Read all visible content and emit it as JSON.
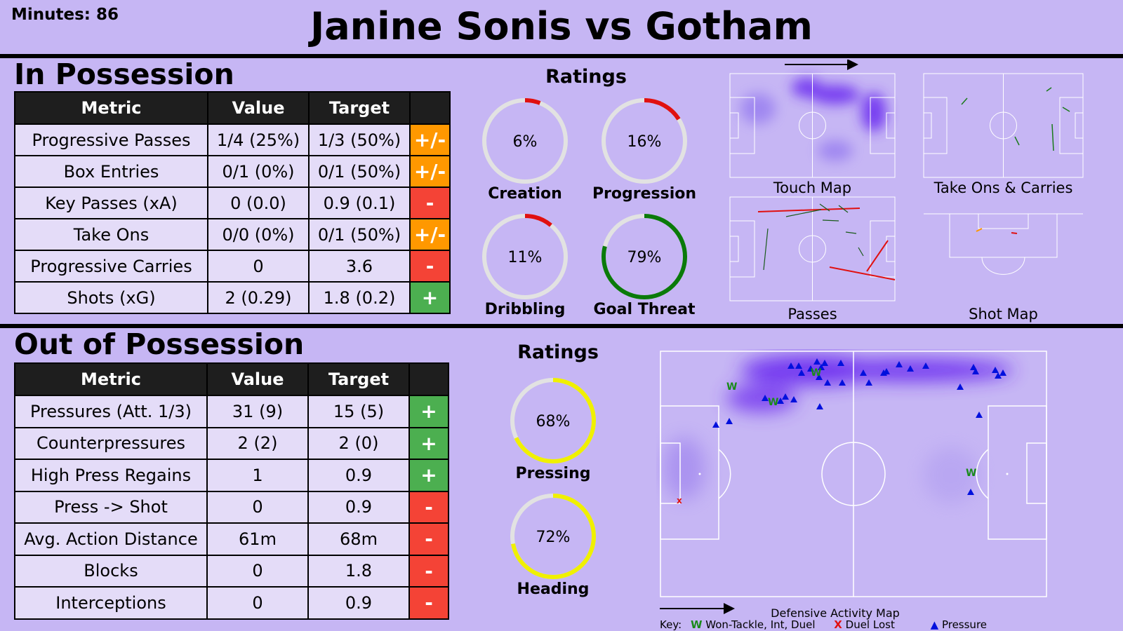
{
  "header": {
    "minutes": "Minutes: 86",
    "title": "Janine Sonis vs Gotham"
  },
  "in_possession": {
    "heading": "In Possession",
    "columns": [
      "Metric",
      "Value",
      "Target",
      ""
    ],
    "rows": [
      {
        "metric": "Progressive Passes",
        "value": "1/4 (25%)",
        "target": "1/3 (50%)",
        "indicator": "+/-"
      },
      {
        "metric": "Box Entries",
        "value": "0/1 (0%)",
        "target": "0/1 (50%)",
        "indicator": "+/-"
      },
      {
        "metric": "Key Passes (xA)",
        "value": "0 (0.0)",
        "target": "0.9 (0.1)",
        "indicator": "-"
      },
      {
        "metric": "Take Ons",
        "value": "0/0 (0%)",
        "target": "0/1 (50%)",
        "indicator": "+/-"
      },
      {
        "metric": "Progressive Carries",
        "value": "0",
        "target": "3.6",
        "indicator": "-"
      },
      {
        "metric": "Shots (xG)",
        "value": "2 (0.29)",
        "target": "1.8 (0.2)",
        "indicator": "+"
      }
    ],
    "ratings_heading": "Ratings",
    "ratings": [
      {
        "label": "Creation",
        "value": "6%",
        "pct": 6,
        "color": "#e01010"
      },
      {
        "label": "Progression",
        "value": "16%",
        "pct": 16,
        "color": "#e01010"
      },
      {
        "label": "Dribbling",
        "value": "11%",
        "pct": 11,
        "color": "#e01010"
      },
      {
        "label": "Goal Threat",
        "value": "79%",
        "pct": 79,
        "color": "#0a7a0a"
      }
    ],
    "maps": [
      "Touch Map",
      "Take Ons & Carries",
      "Passes",
      "Shot Map"
    ]
  },
  "out_of_possession": {
    "heading": "Out of Possession",
    "columns": [
      "Metric",
      "Value",
      "Target",
      ""
    ],
    "rows": [
      {
        "metric": "Pressures (Att. 1/3)",
        "value": "31 (9)",
        "target": "15 (5)",
        "indicator": "+"
      },
      {
        "metric": "Counterpressures",
        "value": "2 (2)",
        "target": "2 (0)",
        "indicator": "+"
      },
      {
        "metric": "High Press Regains",
        "value": "1",
        "target": "0.9",
        "indicator": "+"
      },
      {
        "metric": "Press -> Shot",
        "value": "0",
        "target": "0.9",
        "indicator": "-"
      },
      {
        "metric": "Avg. Action Distance",
        "value": "61m",
        "target": "68m",
        "indicator": "-"
      },
      {
        "metric": "Blocks",
        "value": "0",
        "target": "1.8",
        "indicator": "-"
      },
      {
        "metric": "Interceptions",
        "value": "0",
        "target": "0.9",
        "indicator": "-"
      }
    ],
    "ratings_heading": "Ratings",
    "ratings": [
      {
        "label": "Pressing",
        "value": "68%",
        "pct": 68,
        "color": "#f0f000"
      },
      {
        "label": "Heading",
        "value": "72%",
        "pct": 72,
        "color": "#f0f000"
      }
    ],
    "map_label": "Defensive Activity Map",
    "key": {
      "prefix": "Key:",
      "won_symbol": "W",
      "won": "Won-Tackle, Int, Duel",
      "lost_symbol": "X",
      "lost": "Duel Lost",
      "pressure_symbol": "▲",
      "pressure": "Pressure"
    }
  },
  "colors": {
    "background": "#c6b6f4",
    "plus": "#4caf50",
    "mixed": "#ff9800",
    "minus": "#f44336",
    "table_header": "#1e1e1e",
    "cell": "#e4dcf8",
    "pressure": "#0010dd",
    "won": "#1a8a1a",
    "lost": "#e01010"
  }
}
